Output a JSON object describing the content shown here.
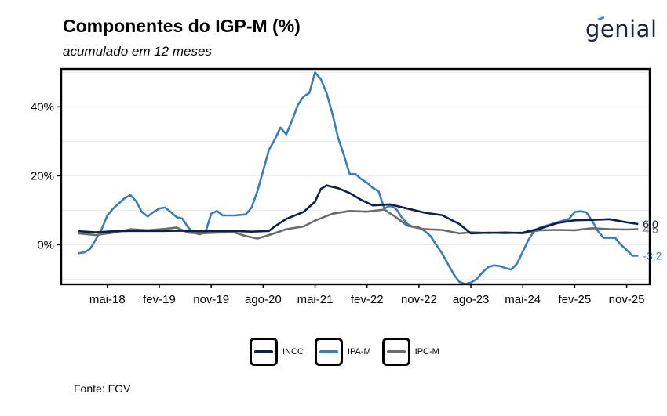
{
  "header": {
    "title": "Componentes do IGP-M (%)",
    "subtitle": "acumulado em 12 meses",
    "logo_text": "genial"
  },
  "footer": {
    "source": "Fonte: FGV"
  },
  "colors": {
    "INCC": "#0c1f4f",
    "IPA-M": "#3a7dbf",
    "IPC-M": "#6b6b6b"
  },
  "chart_data": {
    "type": "line",
    "x_start": "2017-12",
    "x_end": "2026-01",
    "ylim": [
      -11.5,
      51
    ],
    "yticks": [
      0,
      20,
      40
    ],
    "ytick_labels": [
      "0%",
      "20%",
      "40%"
    ],
    "xticks": [
      "2018-05",
      "2019-02",
      "2019-11",
      "2020-08",
      "2021-05",
      "2022-02",
      "2022-11",
      "2023-08",
      "2024-05",
      "2025-02",
      "2025-11"
    ],
    "xtick_labels": [
      "mai-18",
      "fev-19",
      "nov-19",
      "ago-20",
      "mai-21",
      "fev-22",
      "nov-22",
      "ago-23",
      "mai-24",
      "fev-25",
      "nov-25"
    ],
    "grid": true,
    "legend_position": "bottom",
    "end_labels": [
      {
        "series": "INCC",
        "text": "6.0"
      },
      {
        "series": "IPC-M",
        "text": "4.5"
      },
      {
        "series": "IPA-M",
        "text": "-3.2"
      }
    ],
    "series": [
      {
        "name": "INCC",
        "color": "#0c1f4f",
        "points": [
          [
            "2017-12",
            3.9
          ],
          [
            "2018-03",
            3.6
          ],
          [
            "2018-06",
            3.9
          ],
          [
            "2018-09",
            4.0
          ],
          [
            "2018-12",
            4.0
          ],
          [
            "2019-03",
            4.0
          ],
          [
            "2019-06",
            4.1
          ],
          [
            "2019-09",
            3.9
          ],
          [
            "2019-12",
            4.0
          ],
          [
            "2020-03",
            4.0
          ],
          [
            "2020-06",
            3.8
          ],
          [
            "2020-09",
            4.0
          ],
          [
            "2020-10",
            5.3
          ],
          [
            "2020-12",
            7.5
          ],
          [
            "2021-03",
            9.5
          ],
          [
            "2021-05",
            12.5
          ],
          [
            "2021-06",
            16.2
          ],
          [
            "2021-07",
            17.2
          ],
          [
            "2021-09",
            16.4
          ],
          [
            "2021-11",
            15.0
          ],
          [
            "2022-01",
            13.0
          ],
          [
            "2022-03",
            11.4
          ],
          [
            "2022-06",
            11.7
          ],
          [
            "2022-09",
            10.5
          ],
          [
            "2022-12",
            9.3
          ],
          [
            "2023-03",
            8.6
          ],
          [
            "2023-06",
            6.0
          ],
          [
            "2023-08",
            3.3
          ],
          [
            "2023-11",
            3.5
          ],
          [
            "2024-02",
            3.4
          ],
          [
            "2024-05",
            3.5
          ],
          [
            "2024-08",
            4.7
          ],
          [
            "2024-11",
            6.3
          ],
          [
            "2025-02",
            7.1
          ],
          [
            "2025-05",
            7.2
          ],
          [
            "2025-08",
            7.4
          ],
          [
            "2025-11",
            6.5
          ],
          [
            "2026-01",
            6.0
          ]
        ]
      },
      {
        "name": "IPA-M",
        "color": "#3a7dbf",
        "points": [
          [
            "2017-12",
            -2.5
          ],
          [
            "2018-01",
            -2.2
          ],
          [
            "2018-02",
            -1.2
          ],
          [
            "2018-03",
            1.5
          ],
          [
            "2018-04",
            4.5
          ],
          [
            "2018-05",
            8.5
          ],
          [
            "2018-06",
            10.5
          ],
          [
            "2018-07",
            12.0
          ],
          [
            "2018-08",
            13.5
          ],
          [
            "2018-09",
            14.4
          ],
          [
            "2018-10",
            12.6
          ],
          [
            "2018-11",
            9.5
          ],
          [
            "2018-12",
            8.2
          ],
          [
            "2019-01",
            9.5
          ],
          [
            "2019-02",
            10.5
          ],
          [
            "2019-03",
            10.8
          ],
          [
            "2019-04",
            9.5
          ],
          [
            "2019-05",
            8.0
          ],
          [
            "2019-06",
            7.6
          ],
          [
            "2019-07",
            5.0
          ],
          [
            "2019-08",
            3.5
          ],
          [
            "2019-09",
            3.0
          ],
          [
            "2019-10",
            3.6
          ],
          [
            "2019-11",
            9.0
          ],
          [
            "2019-12",
            9.8
          ],
          [
            "2020-01",
            8.5
          ],
          [
            "2020-03",
            8.5
          ],
          [
            "2020-05",
            8.8
          ],
          [
            "2020-06",
            10.8
          ],
          [
            "2020-07",
            15.5
          ],
          [
            "2020-08",
            21.5
          ],
          [
            "2020-09",
            27.5
          ],
          [
            "2020-10",
            30.5
          ],
          [
            "2020-11",
            34.0
          ],
          [
            "2020-12",
            32.0
          ],
          [
            "2021-01",
            36.0
          ],
          [
            "2021-02",
            40.5
          ],
          [
            "2021-03",
            43.0
          ],
          [
            "2021-04",
            44.0
          ],
          [
            "2021-05",
            50.0
          ],
          [
            "2021-06",
            48.0
          ],
          [
            "2021-07",
            44.0
          ],
          [
            "2021-08",
            38.0
          ],
          [
            "2021-09",
            31.0
          ],
          [
            "2021-10",
            26.0
          ],
          [
            "2021-11",
            20.5
          ],
          [
            "2021-12",
            20.5
          ],
          [
            "2022-01",
            19.0
          ],
          [
            "2022-02",
            18.0
          ],
          [
            "2022-03",
            16.5
          ],
          [
            "2022-04",
            15.5
          ],
          [
            "2022-05",
            10.5
          ],
          [
            "2022-06",
            11.3
          ],
          [
            "2022-07",
            10.5
          ],
          [
            "2022-08",
            8.0
          ],
          [
            "2022-09",
            6.0
          ],
          [
            "2022-10",
            5.2
          ],
          [
            "2022-11",
            5.0
          ],
          [
            "2022-12",
            4.0
          ],
          [
            "2023-01",
            2.5
          ],
          [
            "2023-02",
            0.0
          ],
          [
            "2023-03",
            -2.5
          ],
          [
            "2023-04",
            -5.5
          ],
          [
            "2023-05",
            -8.5
          ],
          [
            "2023-06",
            -10.8
          ],
          [
            "2023-07",
            -11.4
          ],
          [
            "2023-08",
            -11.0
          ],
          [
            "2023-09",
            -10.0
          ],
          [
            "2023-10",
            -8.0
          ],
          [
            "2023-11",
            -6.5
          ],
          [
            "2023-12",
            -6.0
          ],
          [
            "2024-01",
            -6.2
          ],
          [
            "2024-02",
            -6.8
          ],
          [
            "2024-03",
            -7.2
          ],
          [
            "2024-04",
            -5.5
          ],
          [
            "2024-05",
            -2.0
          ],
          [
            "2024-06",
            1.5
          ],
          [
            "2024-07",
            4.0
          ],
          [
            "2024-08",
            5.0
          ],
          [
            "2024-09",
            5.5
          ],
          [
            "2024-10",
            6.0
          ],
          [
            "2024-11",
            6.5
          ],
          [
            "2024-12",
            7.0
          ],
          [
            "2025-01",
            7.5
          ],
          [
            "2025-02",
            9.5
          ],
          [
            "2025-03",
            9.7
          ],
          [
            "2025-04",
            9.4
          ],
          [
            "2025-05",
            7.0
          ],
          [
            "2025-06",
            4.0
          ],
          [
            "2025-07",
            2.0
          ],
          [
            "2025-08",
            2.0
          ],
          [
            "2025-09",
            2.0
          ],
          [
            "2025-10",
            0.0
          ],
          [
            "2025-11",
            -1.5
          ],
          [
            "2025-12",
            -3.2
          ],
          [
            "2026-01",
            -3.2
          ]
        ]
      },
      {
        "name": "IPC-M",
        "color": "#6b6b6b",
        "points": [
          [
            "2017-12",
            3.3
          ],
          [
            "2018-03",
            2.8
          ],
          [
            "2018-06",
            3.5
          ],
          [
            "2018-09",
            4.5
          ],
          [
            "2018-12",
            4.2
          ],
          [
            "2019-03",
            4.6
          ],
          [
            "2019-05",
            5.0
          ],
          [
            "2019-07",
            3.5
          ],
          [
            "2019-09",
            3.3
          ],
          [
            "2019-12",
            3.5
          ],
          [
            "2020-03",
            3.6
          ],
          [
            "2020-05",
            2.5
          ],
          [
            "2020-07",
            1.8
          ],
          [
            "2020-09",
            2.8
          ],
          [
            "2020-12",
            4.5
          ],
          [
            "2021-03",
            5.3
          ],
          [
            "2021-05",
            7.0
          ],
          [
            "2021-08",
            9.0
          ],
          [
            "2021-11",
            9.8
          ],
          [
            "2022-02",
            9.6
          ],
          [
            "2022-05",
            10.2
          ],
          [
            "2022-07",
            8.0
          ],
          [
            "2022-09",
            5.5
          ],
          [
            "2022-12",
            4.5
          ],
          [
            "2023-03",
            4.3
          ],
          [
            "2023-06",
            3.3
          ],
          [
            "2023-08",
            3.6
          ],
          [
            "2023-11",
            3.4
          ],
          [
            "2024-02",
            3.6
          ],
          [
            "2024-05",
            3.3
          ],
          [
            "2024-08",
            4.2
          ],
          [
            "2024-11",
            4.3
          ],
          [
            "2025-02",
            4.2
          ],
          [
            "2025-05",
            4.8
          ],
          [
            "2025-08",
            4.5
          ],
          [
            "2025-11",
            4.4
          ],
          [
            "2026-01",
            4.5
          ]
        ]
      }
    ]
  }
}
